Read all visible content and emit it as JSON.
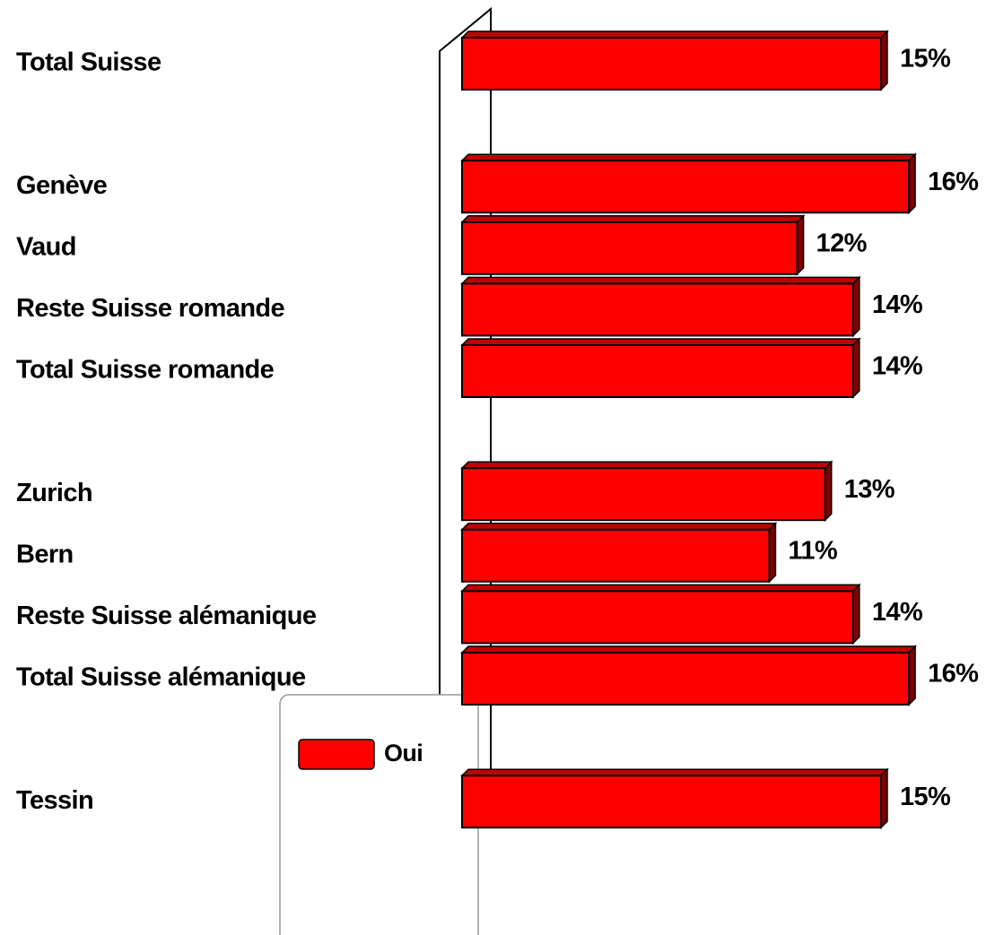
{
  "chart_data": {
    "type": "bar",
    "orientation": "horizontal",
    "categories": [
      "Total Suisse",
      null,
      "Genève",
      "Vaud",
      "Reste Suisse romande",
      "Total Suisse romande",
      null,
      "Zurich",
      "Bern",
      "Reste Suisse alémanique",
      "Total Suisse alémanique",
      null,
      "Tessin"
    ],
    "series": [
      {
        "name": "Oui",
        "color": "#ff0000",
        "values": [
          15,
          null,
          16,
          12,
          14,
          14,
          null,
          13,
          11,
          14,
          16,
          null,
          15
        ],
        "value_labels": [
          "15%",
          null,
          "16%",
          "12%",
          "14%",
          "14%",
          null,
          "13%",
          "11%",
          "14%",
          "16%",
          null,
          "15%"
        ]
      }
    ],
    "legend": "bottom"
  }
}
